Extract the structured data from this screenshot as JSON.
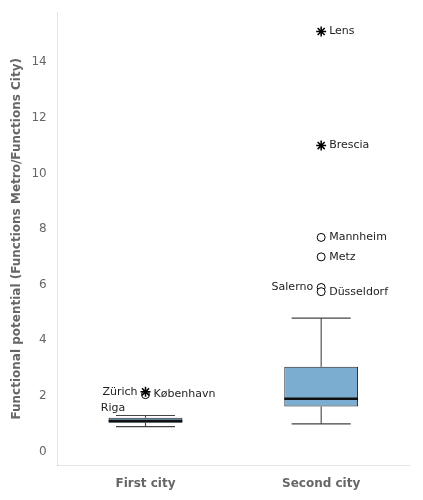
{
  "chart_data": {
    "type": "box",
    "ylabel": "Functional potential (Functions Metro/Functions City)",
    "categories": [
      "First city",
      "Second city"
    ],
    "color": "#7aadcf",
    "boxes": [
      {
        "med": 1.1,
        "q1": 1.04,
        "q3": 1.22,
        "whislo": 0.9,
        "whishi": 1.3
      },
      {
        "med": 1.9,
        "q1": 1.62,
        "q3": 3.05,
        "whislo": 1.0,
        "whishi": 4.8
      }
    ],
    "outliers": [
      [
        {
          "value": 2.15,
          "label": "Zürich",
          "marker": "star"
        },
        {
          "value": 2.05,
          "label": "København",
          "marker": "circle"
        }
      ],
      [
        {
          "value": 11.0,
          "label": "Brescia",
          "marker": "star"
        },
        {
          "value": 15.1,
          "label": "Lens",
          "marker": "star"
        },
        {
          "value": 5.9,
          "label": "Salerno",
          "marker": "circle"
        },
        {
          "value": 5.75,
          "label": "Düsseldorf",
          "marker": "circle"
        },
        {
          "value": 7.0,
          "label": "Metz",
          "marker": "circle"
        },
        {
          "value": 7.7,
          "label": "Mannheim",
          "marker": "circle"
        }
      ]
    ],
    "annotations": [
      [
        {
          "value": 1.55,
          "label": "Riga"
        }
      ],
      []
    ],
    "ylim": [
      -0.5,
      15.8
    ],
    "yticks": [
      0,
      2,
      4,
      6,
      8,
      10,
      12,
      14
    ],
    "grid": false
  }
}
